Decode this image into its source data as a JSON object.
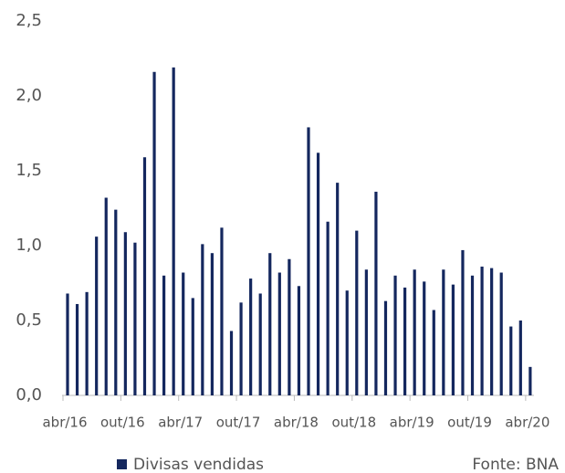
{
  "chart_data": {
    "type": "bar",
    "series": [
      {
        "name": "Divisas vendidas",
        "color": "#14275e",
        "values": [
          0.68,
          0.61,
          0.69,
          1.06,
          1.32,
          1.24,
          1.09,
          1.02,
          1.59,
          2.16,
          0.8,
          2.19,
          0.82,
          0.65,
          1.01,
          0.95,
          1.12,
          0.43,
          0.62,
          0.78,
          0.68,
          0.95,
          0.82,
          0.91,
          0.73,
          1.79,
          1.62,
          1.16,
          1.42,
          0.7,
          1.1,
          0.84,
          1.36,
          0.63,
          0.8,
          0.72,
          0.84,
          0.76,
          0.57,
          0.84,
          0.74,
          0.97,
          0.8,
          0.86,
          0.85,
          0.82,
          0.46,
          0.5,
          0.19
        ]
      }
    ],
    "categories": [
      "abr/16",
      null,
      null,
      null,
      null,
      null,
      "out/16",
      null,
      null,
      null,
      null,
      null,
      "abr/17",
      null,
      null,
      null,
      null,
      null,
      "out/17",
      null,
      null,
      null,
      null,
      null,
      "abr/18",
      null,
      null,
      null,
      null,
      null,
      "out/18",
      null,
      null,
      null,
      null,
      null,
      "abr/19",
      null,
      null,
      null,
      null,
      null,
      "out/19",
      null,
      null,
      null,
      null,
      null,
      "abr/20"
    ],
    "ylim": [
      0,
      2.5
    ],
    "yticks": [
      {
        "value": 0,
        "label": "0,0"
      },
      {
        "value": 0.5,
        "label": "0,5"
      },
      {
        "value": 1,
        "label": "1,0"
      },
      {
        "value": 1.5,
        "label": "1,5"
      },
      {
        "value": 2,
        "label": "2,0"
      },
      {
        "value": 2.5,
        "label": "2,5"
      }
    ],
    "source": "Fonte: BNA",
    "legend": "bottom-left"
  }
}
